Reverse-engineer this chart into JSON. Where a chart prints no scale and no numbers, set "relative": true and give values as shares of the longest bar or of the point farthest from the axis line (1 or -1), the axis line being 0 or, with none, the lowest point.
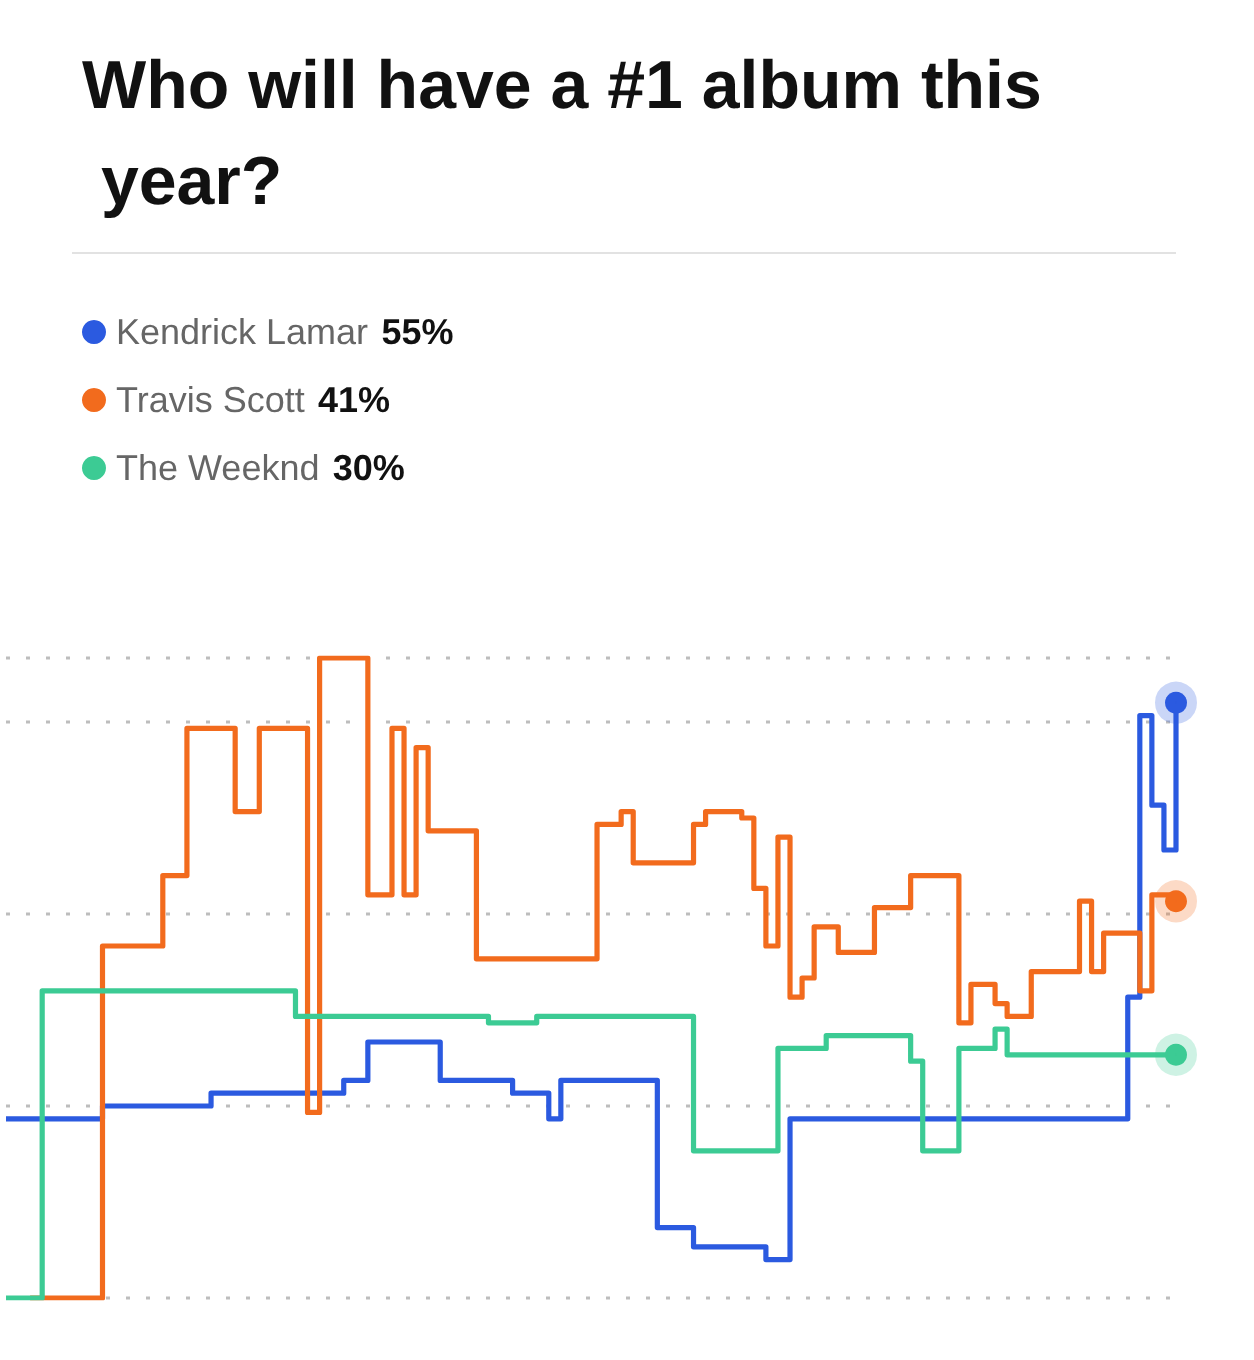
{
  "chart_data": {
    "type": "step",
    "title": "Who will have a #1 album this year?",
    "relative": true,
    "grid": "y",
    "legend": "top left",
    "categories": [
      null,
      null,
      null,
      null,
      null,
      null,
      null,
      null,
      null,
      null,
      null,
      null,
      null,
      null,
      null,
      null,
      null,
      null,
      null,
      null,
      null,
      null,
      null,
      null,
      null,
      null,
      null,
      null,
      null,
      null,
      null,
      null,
      null,
      null,
      null,
      null,
      null,
      null,
      null,
      null,
      null,
      null,
      null,
      null,
      null,
      null,
      null,
      null,
      null,
      null,
      null,
      null,
      null,
      null,
      null,
      null,
      null,
      null,
      null,
      null,
      null,
      null,
      null,
      null,
      null,
      null,
      null,
      null,
      null,
      null,
      null,
      null,
      null,
      null,
      null,
      null,
      null,
      null,
      null,
      null,
      null,
      null,
      null,
      null,
      null,
      null,
      null,
      null,
      null,
      null,
      null,
      null,
      null,
      null,
      null,
      null,
      null,
      null
    ],
    "series": [
      {
        "name": "Kendrick Lamar 55%",
        "color": "#2b5ae0",
        "values": [
          0.28,
          0.28,
          0.28,
          0.28,
          0.28,
          0.28,
          0.28,
          0.28,
          0.3,
          0.3,
          0.3,
          0.3,
          0.3,
          0.3,
          0.3,
          0.3,
          0.3,
          0.32,
          0.32,
          0.32,
          0.32,
          0.32,
          0.32,
          0.32,
          0.32,
          0.32,
          0.32,
          0.32,
          0.34,
          0.34,
          0.4,
          0.4,
          0.4,
          0.4,
          0.4,
          0.4,
          0.34,
          0.34,
          0.34,
          0.34,
          0.34,
          0.34,
          0.32,
          0.32,
          0.32,
          0.28,
          0.34,
          0.34,
          0.34,
          0.34,
          0.34,
          0.34,
          0.34,
          0.34,
          0.11,
          0.11,
          0.11,
          0.08,
          0.08,
          0.08,
          0.08,
          0.08,
          0.08,
          0.06,
          0.06,
          0.28,
          0.28,
          0.28,
          0.28,
          0.28,
          0.28,
          0.28,
          0.28,
          0.28,
          0.28,
          0.28,
          0.28,
          0.28,
          0.28,
          0.28,
          0.28,
          0.28,
          0.28,
          0.28,
          0.28,
          0.28,
          0.28,
          0.28,
          0.28,
          0.28,
          0.28,
          0.28,
          0.28,
          0.47,
          0.91,
          0.77,
          0.7,
          0.93
        ]
      },
      {
        "name": "Travis Scott 41%",
        "color": "#f26b1d",
        "values": [
          null,
          null,
          0,
          0,
          0,
          0,
          0,
          0,
          0.55,
          0.55,
          0.55,
          0.55,
          0.55,
          0.66,
          0.66,
          0.89,
          0.89,
          0.89,
          0.89,
          0.76,
          0.76,
          0.89,
          0.89,
          0.89,
          0.89,
          0.29,
          1.0,
          1.0,
          1.0,
          1.0,
          0.63,
          0.63,
          0.89,
          0.63,
          0.86,
          0.73,
          0.73,
          0.73,
          0.73,
          0.53,
          0.53,
          0.53,
          0.53,
          0.53,
          0.53,
          0.53,
          0.53,
          0.53,
          0.53,
          0.74,
          0.74,
          0.76,
          0.68,
          0.68,
          0.68,
          0.68,
          0.68,
          0.74,
          0.76,
          0.76,
          0.76,
          0.75,
          0.64,
          0.55,
          0.72,
          0.47,
          0.5,
          0.58,
          0.58,
          0.54,
          0.54,
          0.54,
          0.61,
          0.61,
          0.61,
          0.66,
          0.66,
          0.66,
          0.66,
          0.43,
          0.49,
          0.49,
          0.46,
          0.44,
          0.44,
          0.51,
          0.51,
          0.51,
          0.51,
          0.62,
          0.51,
          0.57,
          0.57,
          0.57,
          0.48,
          0.63,
          0.63,
          0.62
        ]
      },
      {
        "name": "The Weeknd 30%",
        "color": "#3ccb94",
        "values": [
          0,
          0,
          0,
          0.48,
          0.48,
          0.48,
          0.48,
          0.48,
          0.48,
          0.48,
          0.48,
          0.48,
          0.48,
          0.48,
          0.48,
          0.48,
          0.48,
          0.48,
          0.48,
          0.48,
          0.48,
          0.48,
          0.48,
          0.48,
          0.44,
          0.44,
          0.44,
          0.44,
          0.44,
          0.44,
          0.44,
          0.44,
          0.44,
          0.44,
          0.44,
          0.44,
          0.44,
          0.44,
          0.44,
          0.44,
          0.43,
          0.43,
          0.43,
          0.43,
          0.44,
          0.44,
          0.44,
          0.44,
          0.44,
          0.44,
          0.44,
          0.44,
          0.44,
          0.44,
          0.44,
          0.44,
          0.44,
          0.23,
          0.23,
          0.23,
          0.23,
          0.23,
          0.23,
          0.23,
          0.39,
          0.39,
          0.39,
          0.39,
          0.41,
          0.41,
          0.41,
          0.41,
          0.41,
          0.41,
          0.41,
          0.37,
          0.23,
          0.23,
          0.23,
          0.39,
          0.39,
          0.39,
          0.42,
          0.38,
          0.38,
          0.38,
          0.38,
          0.38,
          0.38,
          0.38,
          0.38,
          0.38,
          0.38,
          0.38,
          0.38,
          0.38,
          0.38,
          0.38
        ]
      }
    ]
  }
}
